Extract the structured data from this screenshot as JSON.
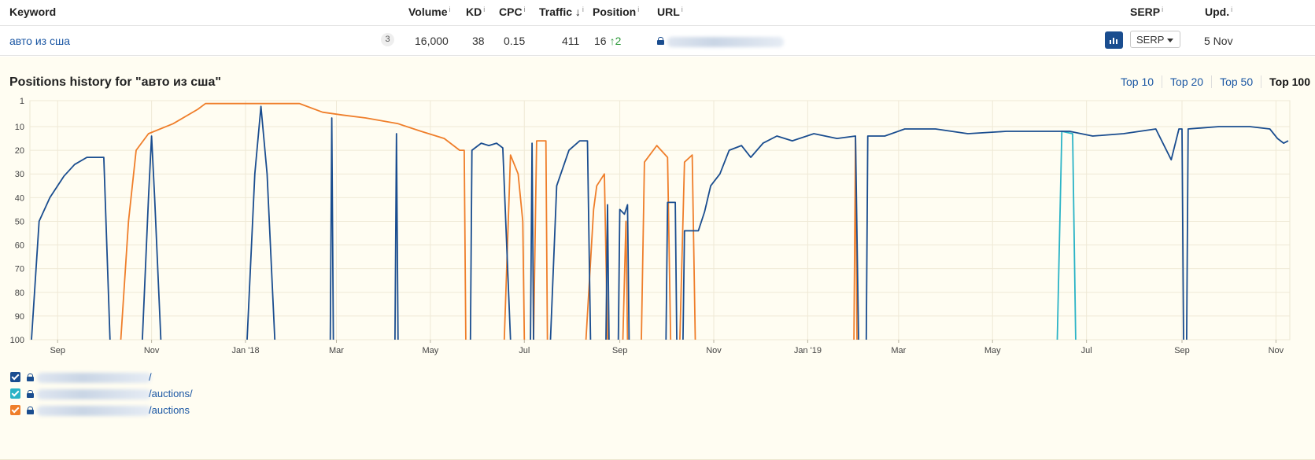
{
  "table": {
    "headers": {
      "keyword": "Keyword",
      "volume": "Volume",
      "kd": "KD",
      "cpc": "CPC",
      "traffic": "Traffic",
      "traffic_sort": "↓",
      "position": "Position",
      "url": "URL",
      "serp": "SERP",
      "upd": "Upd.",
      "info_mark": "i"
    },
    "row": {
      "keyword": "авто из сша",
      "keyword_count": "3",
      "volume": "16,000",
      "kd": "38",
      "cpc": "0.15",
      "traffic": "411",
      "position": "16",
      "position_change": "↑2",
      "serp_button_label": "SERP",
      "updated": "5 Nov"
    }
  },
  "history": {
    "title": "Positions history for \"авто из сша\"",
    "filters": [
      "Top 10",
      "Top 20",
      "Top 50",
      "Top 100"
    ],
    "active_filter": "Top 100"
  },
  "legend": [
    {
      "suffix": "/",
      "color": "#1a4d8f",
      "checked": true
    },
    {
      "suffix": "/auctions/",
      "color": "#2ab3c6",
      "checked": true
    },
    {
      "suffix": "/auctions",
      "color": "#ef7e2a",
      "checked": true
    }
  ],
  "chart_data": {
    "type": "line",
    "y_axis": {
      "reversed": true,
      "ticks": [
        "1",
        "10",
        "20",
        "30",
        "40",
        "50",
        "60",
        "70",
        "80",
        "90",
        "100"
      ],
      "range": [
        1,
        100
      ]
    },
    "x_axis": {
      "ticks": [
        "Sep",
        "Nov",
        "Jan '18",
        "Mar",
        "May",
        "Jul",
        "Sep",
        "Nov",
        "Jan '19",
        "Mar",
        "May",
        "Jul",
        "Sep",
        "Nov"
      ],
      "range": [
        "2017-08-14",
        "2019-11-10"
      ]
    },
    "grid": true,
    "series_colors": [
      "#1a4d8f",
      "#2ab3c6",
      "#ef7e2a"
    ],
    "series": [
      {
        "url_suffix": "/",
        "segments": [
          [
            [
              "2017-08-15",
              100
            ],
            [
              "2017-08-20",
              50
            ],
            [
              "2017-08-27",
              40
            ],
            [
              "2017-09-05",
              31
            ],
            [
              "2017-09-12",
              26
            ],
            [
              "2017-09-20",
              23
            ],
            [
              "2017-10-01",
              23
            ],
            [
              "2017-10-05",
              100
            ]
          ],
          [
            [
              "2017-10-26",
              100
            ],
            [
              "2017-10-30",
              40
            ],
            [
              "2017-11-01",
              14
            ],
            [
              "2017-11-03",
              40
            ],
            [
              "2017-11-07",
              100
            ]
          ],
          [
            [
              "2018-01-02",
              100
            ],
            [
              "2018-01-07",
              30
            ],
            [
              "2018-01-11",
              3
            ],
            [
              "2018-01-15",
              30
            ],
            [
              "2018-01-20",
              100
            ]
          ],
          [
            [
              "2018-02-25",
              100
            ],
            [
              "2018-02-26",
              7
            ],
            [
              "2018-02-27",
              100
            ]
          ],
          [
            [
              "2018-04-08",
              100
            ],
            [
              "2018-04-09",
              13
            ],
            [
              "2018-04-10",
              100
            ]
          ],
          [
            [
              "2018-05-27",
              100
            ],
            [
              "2018-05-28",
              20
            ],
            [
              "2018-06-03",
              17
            ],
            [
              "2018-06-08",
              18
            ],
            [
              "2018-06-13",
              17
            ],
            [
              "2018-06-17",
              19
            ],
            [
              "2018-06-22",
              100
            ]
          ],
          [
            [
              "2018-07-05",
              100
            ],
            [
              "2018-07-06",
              17
            ],
            [
              "2018-07-07",
              100
            ]
          ],
          [
            [
              "2018-07-18",
              100
            ],
            [
              "2018-07-22",
              35
            ],
            [
              "2018-07-30",
              20
            ],
            [
              "2018-08-06",
              16
            ],
            [
              "2018-08-11",
              16
            ],
            [
              "2018-08-13",
              100
            ]
          ],
          [
            [
              "2018-08-23",
              100
            ],
            [
              "2018-08-24",
              43
            ],
            [
              "2018-08-25",
              100
            ]
          ],
          [
            [
              "2018-08-31",
              100
            ],
            [
              "2018-09-01",
              45
            ],
            [
              "2018-09-04",
              47
            ],
            [
              "2018-09-06",
              43
            ],
            [
              "2018-09-07",
              100
            ]
          ],
          [
            [
              "2018-10-01",
              100
            ],
            [
              "2018-10-02",
              42
            ],
            [
              "2018-10-07",
              42
            ],
            [
              "2018-10-08",
              100
            ]
          ],
          [
            [
              "2018-10-12",
              100
            ],
            [
              "2018-10-13",
              54
            ],
            [
              "2018-10-22",
              54
            ],
            [
              "2018-10-26",
              46
            ],
            [
              "2018-10-30",
              35
            ],
            [
              "2018-11-05",
              30
            ],
            [
              "2018-11-11",
              20
            ],
            [
              "2018-11-19",
              18
            ],
            [
              "2018-11-25",
              23
            ],
            [
              "2018-12-03",
              17
            ],
            [
              "2018-12-12",
              14
            ],
            [
              "2018-12-22",
              16
            ],
            [
              "2019-01-05",
              13
            ],
            [
              "2019-01-20",
              15
            ],
            [
              "2019-02-01",
              14
            ],
            [
              "2019-02-03",
              100
            ]
          ],
          [
            [
              "2019-02-08",
              100
            ],
            [
              "2019-02-09",
              14
            ],
            [
              "2019-02-20",
              14
            ],
            [
              "2019-03-05",
              11
            ],
            [
              "2019-03-25",
              11
            ],
            [
              "2019-04-15",
              13
            ],
            [
              "2019-05-10",
              12
            ],
            [
              "2019-06-05",
              12
            ],
            [
              "2019-06-20",
              12
            ],
            [
              "2019-07-05",
              14
            ],
            [
              "2019-07-25",
              13
            ],
            [
              "2019-08-15",
              11
            ],
            [
              "2019-08-25",
              24
            ],
            [
              "2019-08-30",
              11
            ],
            [
              "2019-09-01",
              11
            ],
            [
              "2019-09-02",
              100
            ]
          ],
          [
            [
              "2019-09-04",
              100
            ],
            [
              "2019-09-05",
              11
            ],
            [
              "2019-09-25",
              10
            ],
            [
              "2019-10-15",
              10
            ],
            [
              "2019-10-28",
              11
            ],
            [
              "2019-11-02",
              15
            ],
            [
              "2019-11-06",
              17
            ],
            [
              "2019-11-09",
              16
            ]
          ]
        ]
      },
      {
        "url_suffix": "/auctions/",
        "segments": [
          [
            [
              "2019-06-12",
              100
            ],
            [
              "2019-06-15",
              12
            ],
            [
              "2019-06-22",
              13
            ],
            [
              "2019-06-24",
              100
            ]
          ]
        ]
      },
      {
        "url_suffix": "/auctions",
        "segments": [
          [
            [
              "2017-10-12",
              100
            ],
            [
              "2017-10-17",
              50
            ],
            [
              "2017-10-22",
              20
            ],
            [
              "2017-10-30",
              13
            ],
            [
              "2017-11-15",
              9
            ],
            [
              "2017-12-01",
              4
            ],
            [
              "2017-12-06",
              2
            ],
            [
              "2018-01-01",
              2
            ],
            [
              "2018-02-05",
              2
            ],
            [
              "2018-02-20",
              5
            ],
            [
              "2018-03-05",
              6
            ],
            [
              "2018-03-20",
              7
            ],
            [
              "2018-04-10",
              9
            ],
            [
              "2018-04-25",
              12
            ],
            [
              "2018-05-10",
              15
            ],
            [
              "2018-05-20",
              20
            ],
            [
              "2018-05-23",
              20
            ],
            [
              "2018-05-24",
              100
            ]
          ],
          [
            [
              "2018-06-18",
              100
            ],
            [
              "2018-06-22",
              22
            ],
            [
              "2018-06-27",
              30
            ],
            [
              "2018-06-30",
              50
            ],
            [
              "2018-07-01",
              100
            ]
          ],
          [
            [
              "2018-07-07",
              100
            ],
            [
              "2018-07-09",
              16
            ],
            [
              "2018-07-15",
              16
            ],
            [
              "2018-07-16",
              100
            ]
          ],
          [
            [
              "2018-08-10",
              100
            ],
            [
              "2018-08-15",
              45
            ],
            [
              "2018-08-17",
              35
            ],
            [
              "2018-08-22",
              30
            ],
            [
              "2018-08-24",
              100
            ]
          ],
          [
            [
              "2018-09-03",
              100
            ],
            [
              "2018-09-05",
              50
            ],
            [
              "2018-09-06",
              100
            ]
          ],
          [
            [
              "2018-09-15",
              100
            ],
            [
              "2018-09-17",
              25
            ],
            [
              "2018-09-25",
              18
            ],
            [
              "2018-10-02",
              23
            ],
            [
              "2018-10-04",
              100
            ]
          ],
          [
            [
              "2018-10-10",
              100
            ],
            [
              "2018-10-13",
              25
            ],
            [
              "2018-10-18",
              22
            ],
            [
              "2018-10-20",
              100
            ]
          ],
          [
            [
              "2019-01-31",
              100
            ],
            [
              "2019-02-01",
              15
            ],
            [
              "2019-02-02",
              100
            ]
          ]
        ]
      }
    ]
  }
}
